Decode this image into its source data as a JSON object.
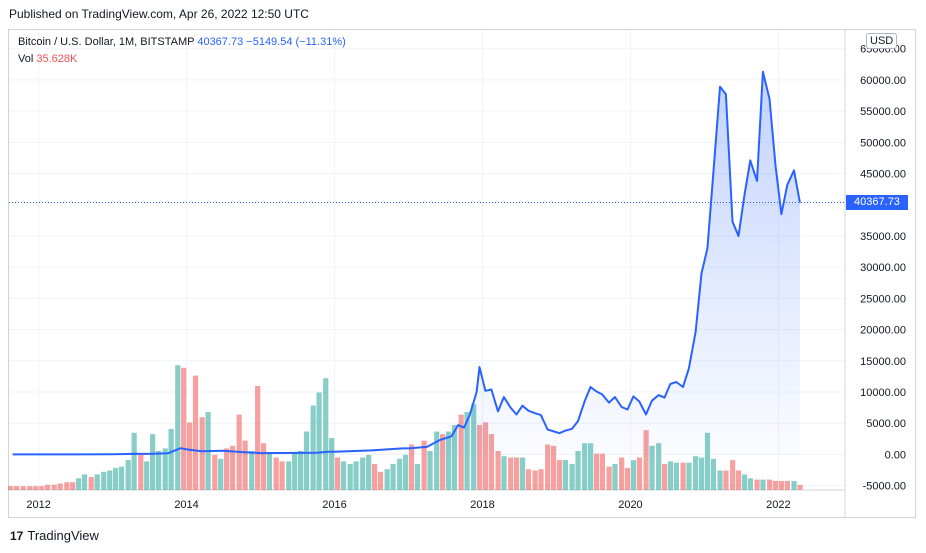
{
  "published": "Published on TradingView.com, Apr 26, 2022 12:50 UTC",
  "legend": {
    "symbol": "Bitcoin / U.S. Dollar, 1M, BITSTAMP",
    "last": "40367.73",
    "change": "−5149.54 (−11.31%)",
    "vol_label": "Vol",
    "vol_value": "35.628K"
  },
  "currency": "USD",
  "last_price_label": "40367.73",
  "footer_brand": "TradingView",
  "footer_logo": "17",
  "colors": {
    "line": "#2962ff",
    "area_top": "#2962ff",
    "vol_up": "#26a69a",
    "vol_down": "#ef5350",
    "grid": "#f0f3fa"
  },
  "chart_data": {
    "type": "line",
    "title": "Bitcoin / U.S. Dollar, 1M, BITSTAMP",
    "xlabel": "",
    "ylabel": "",
    "y_ticks": [
      -5000,
      0,
      5000,
      10000,
      15000,
      20000,
      25000,
      30000,
      35000,
      40000,
      45000,
      50000,
      55000,
      60000,
      65000
    ],
    "y_tick_labels": [
      "-5000.00",
      "0.00",
      "5000.00",
      "10000.00",
      "15000.00",
      "20000.00",
      "25000.00",
      "30000.00",
      "35000.00",
      "40000.00",
      "45000.00",
      "50000.00",
      "55000.00",
      "60000.00",
      "65000.00"
    ],
    "ylim": [
      -5700,
      68000
    ],
    "x_ticks": [
      "2012",
      "2014",
      "2016",
      "2018",
      "2020",
      "2022"
    ],
    "x_tick_dates": [
      2012.0,
      2014.0,
      2016.0,
      2018.0,
      2020.0,
      2022.0
    ],
    "xlim": [
      2011.6,
      2022.9
    ],
    "last_price": 40367.73,
    "grid": true,
    "series": [
      {
        "type": "area",
        "points": [
          [
            2011.65,
            5
          ],
          [
            2012.0,
            5
          ],
          [
            2012.5,
            7
          ],
          [
            2013.0,
            20
          ],
          [
            2013.3,
            100
          ],
          [
            2013.5,
            90
          ],
          [
            2013.75,
            200
          ],
          [
            2013.92,
            1000
          ],
          [
            2014.0,
            800
          ],
          [
            2014.2,
            500
          ],
          [
            2014.5,
            600
          ],
          [
            2014.75,
            380
          ],
          [
            2015.0,
            220
          ],
          [
            2015.5,
            250
          ],
          [
            2015.75,
            280
          ],
          [
            2015.92,
            430
          ],
          [
            2016.0,
            420
          ],
          [
            2016.5,
            650
          ],
          [
            2016.92,
            960
          ],
          [
            2017.0,
            970
          ],
          [
            2017.25,
            1200
          ],
          [
            2017.42,
            2300
          ],
          [
            2017.58,
            2900
          ],
          [
            2017.67,
            4700
          ],
          [
            2017.75,
            4300
          ],
          [
            2017.83,
            6400
          ],
          [
            2017.92,
            10000
          ],
          [
            2017.96,
            14000
          ],
          [
            2018.04,
            10200
          ],
          [
            2018.12,
            10400
          ],
          [
            2018.21,
            6900
          ],
          [
            2018.29,
            9200
          ],
          [
            2018.38,
            7500
          ],
          [
            2018.46,
            6400
          ],
          [
            2018.54,
            7800
          ],
          [
            2018.62,
            7000
          ],
          [
            2018.71,
            6600
          ],
          [
            2018.79,
            6300
          ],
          [
            2018.88,
            4000
          ],
          [
            2018.96,
            3700
          ],
          [
            2019.04,
            3400
          ],
          [
            2019.12,
            3800
          ],
          [
            2019.21,
            4100
          ],
          [
            2019.29,
            5300
          ],
          [
            2019.38,
            8500
          ],
          [
            2019.46,
            10800
          ],
          [
            2019.54,
            10100
          ],
          [
            2019.62,
            9600
          ],
          [
            2019.71,
            8300
          ],
          [
            2019.79,
            9200
          ],
          [
            2019.88,
            7600
          ],
          [
            2019.96,
            7200
          ],
          [
            2020.04,
            9300
          ],
          [
            2020.12,
            8500
          ],
          [
            2020.21,
            6400
          ],
          [
            2020.29,
            8600
          ],
          [
            2020.38,
            9500
          ],
          [
            2020.46,
            9100
          ],
          [
            2020.54,
            11300
          ],
          [
            2020.62,
            11600
          ],
          [
            2020.71,
            10800
          ],
          [
            2020.79,
            13800
          ],
          [
            2020.88,
            19600
          ],
          [
            2020.96,
            29000
          ],
          [
            2021.04,
            33000
          ],
          [
            2021.12,
            45000
          ],
          [
            2021.21,
            58900
          ],
          [
            2021.29,
            57700
          ],
          [
            2021.38,
            37300
          ],
          [
            2021.46,
            35000
          ],
          [
            2021.54,
            41500
          ],
          [
            2021.62,
            47100
          ],
          [
            2021.71,
            43800
          ],
          [
            2021.79,
            61300
          ],
          [
            2021.88,
            57000
          ],
          [
            2021.96,
            46300
          ],
          [
            2022.04,
            38500
          ],
          [
            2022.12,
            43200
          ],
          [
            2022.21,
            45500
          ],
          [
            2022.29,
            40367.73
          ]
        ]
      },
      {
        "name": "Vol",
        "type": "bar",
        "ylim": [
          0,
          100
        ],
        "points": [
          [
            2011.62,
            3,
            0
          ],
          [
            2011.7,
            3,
            0
          ],
          [
            2011.79,
            3,
            0
          ],
          [
            2011.88,
            3,
            0
          ],
          [
            2011.96,
            3,
            0
          ],
          [
            2012.04,
            3,
            0
          ],
          [
            2012.12,
            4,
            0
          ],
          [
            2012.21,
            4,
            0
          ],
          [
            2012.29,
            5,
            0
          ],
          [
            2012.38,
            6,
            0
          ],
          [
            2012.46,
            6,
            0
          ],
          [
            2012.54,
            9,
            1
          ],
          [
            2012.62,
            12,
            1
          ],
          [
            2012.71,
            10,
            0
          ],
          [
            2012.79,
            12,
            1
          ],
          [
            2012.88,
            14,
            1
          ],
          [
            2012.96,
            15,
            1
          ],
          [
            2013.04,
            17,
            1
          ],
          [
            2013.12,
            18,
            1
          ],
          [
            2013.21,
            23,
            1
          ],
          [
            2013.29,
            44,
            1
          ],
          [
            2013.38,
            27,
            0
          ],
          [
            2013.46,
            22,
            1
          ],
          [
            2013.54,
            43,
            1
          ],
          [
            2013.62,
            30,
            1
          ],
          [
            2013.71,
            32,
            1
          ],
          [
            2013.79,
            47,
            1
          ],
          [
            2013.88,
            96,
            1
          ],
          [
            2013.96,
            94,
            0
          ],
          [
            2014.04,
            52,
            0
          ],
          [
            2014.12,
            88,
            0
          ],
          [
            2014.21,
            56,
            0
          ],
          [
            2014.29,
            60,
            1
          ],
          [
            2014.38,
            27,
            0
          ],
          [
            2014.46,
            24,
            1
          ],
          [
            2014.54,
            32,
            0
          ],
          [
            2014.62,
            34,
            0
          ],
          [
            2014.71,
            58,
            0
          ],
          [
            2014.79,
            38,
            0
          ],
          [
            2014.88,
            30,
            1
          ],
          [
            2014.96,
            80,
            0
          ],
          [
            2015.04,
            36,
            0
          ],
          [
            2015.12,
            28,
            1
          ],
          [
            2015.21,
            25,
            0
          ],
          [
            2015.29,
            22,
            0
          ],
          [
            2015.38,
            22,
            1
          ],
          [
            2015.46,
            28,
            1
          ],
          [
            2015.54,
            30,
            1
          ],
          [
            2015.62,
            45,
            1
          ],
          [
            2015.71,
            65,
            1
          ],
          [
            2015.79,
            75,
            1
          ],
          [
            2015.88,
            86,
            1
          ],
          [
            2015.96,
            40,
            1
          ],
          [
            2016.04,
            25,
            0
          ],
          [
            2016.12,
            22,
            1
          ],
          [
            2016.21,
            20,
            1
          ],
          [
            2016.29,
            22,
            1
          ],
          [
            2016.38,
            25,
            1
          ],
          [
            2016.46,
            27,
            1
          ],
          [
            2016.54,
            20,
            0
          ],
          [
            2016.62,
            14,
            0
          ],
          [
            2016.71,
            16,
            1
          ],
          [
            2016.79,
            20,
            1
          ],
          [
            2016.88,
            24,
            1
          ],
          [
            2016.96,
            27,
            1
          ],
          [
            2017.04,
            35,
            0
          ],
          [
            2017.12,
            20,
            1
          ],
          [
            2017.21,
            38,
            0
          ],
          [
            2017.29,
            30,
            1
          ],
          [
            2017.38,
            45,
            1
          ],
          [
            2017.46,
            43,
            0
          ],
          [
            2017.54,
            45,
            1
          ],
          [
            2017.62,
            50,
            1
          ],
          [
            2017.71,
            58,
            0
          ],
          [
            2017.79,
            60,
            1
          ],
          [
            2017.88,
            66,
            1
          ],
          [
            2017.96,
            50,
            0
          ],
          [
            2018.04,
            52,
            0
          ],
          [
            2018.12,
            43,
            0
          ],
          [
            2018.21,
            30,
            0
          ],
          [
            2018.29,
            26,
            1
          ],
          [
            2018.38,
            25,
            0
          ],
          [
            2018.46,
            25,
            0
          ],
          [
            2018.54,
            25,
            1
          ],
          [
            2018.62,
            16,
            0
          ],
          [
            2018.71,
            15,
            0
          ],
          [
            2018.79,
            16,
            0
          ],
          [
            2018.88,
            35,
            0
          ],
          [
            2018.96,
            34,
            0
          ],
          [
            2019.04,
            23,
            0
          ],
          [
            2019.12,
            23,
            1
          ],
          [
            2019.21,
            20,
            1
          ],
          [
            2019.29,
            30,
            1
          ],
          [
            2019.38,
            36,
            1
          ],
          [
            2019.46,
            36,
            1
          ],
          [
            2019.54,
            28,
            0
          ],
          [
            2019.62,
            28,
            0
          ],
          [
            2019.71,
            18,
            0
          ],
          [
            2019.79,
            20,
            1
          ],
          [
            2019.88,
            25,
            0
          ],
          [
            2019.96,
            17,
            0
          ],
          [
            2020.04,
            23,
            1
          ],
          [
            2020.12,
            25,
            0
          ],
          [
            2020.21,
            46,
            0
          ],
          [
            2020.29,
            34,
            1
          ],
          [
            2020.38,
            36,
            1
          ],
          [
            2020.46,
            20,
            0
          ],
          [
            2020.54,
            22,
            1
          ],
          [
            2020.62,
            21,
            1
          ],
          [
            2020.71,
            21,
            0
          ],
          [
            2020.79,
            21,
            1
          ],
          [
            2020.88,
            26,
            1
          ],
          [
            2020.96,
            25,
            1
          ],
          [
            2021.04,
            44,
            1
          ],
          [
            2021.12,
            24,
            1
          ],
          [
            2021.21,
            15,
            1
          ],
          [
            2021.29,
            15,
            0
          ],
          [
            2021.38,
            23,
            0
          ],
          [
            2021.46,
            15,
            0
          ],
          [
            2021.54,
            12,
            1
          ],
          [
            2021.62,
            9,
            1
          ],
          [
            2021.71,
            8,
            0
          ],
          [
            2021.79,
            8,
            1
          ],
          [
            2021.88,
            8,
            0
          ],
          [
            2021.96,
            7,
            0
          ],
          [
            2022.04,
            7,
            0
          ],
          [
            2022.12,
            7,
            0
          ],
          [
            2022.21,
            7,
            1
          ],
          [
            2022.29,
            4,
            0
          ]
        ]
      }
    ]
  }
}
